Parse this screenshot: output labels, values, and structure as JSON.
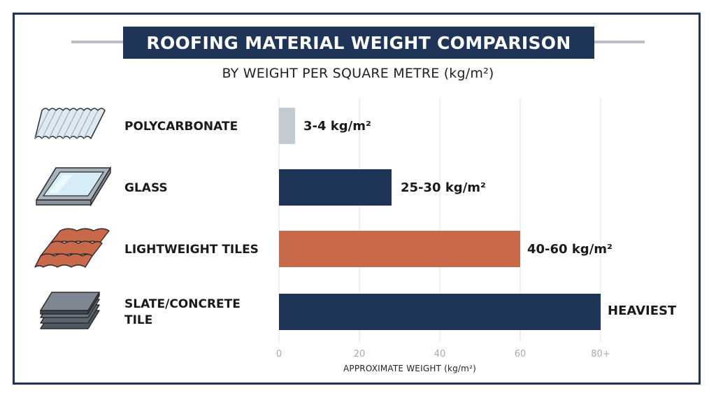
{
  "title": "ROOFING MATERIAL WEIGHT COMPARISON",
  "subtitle": "BY WEIGHT PER SQUARE METRE (kg/m²)",
  "icons": [
    "corrugated-sheet-icon",
    "glass-panel-icon",
    "roof-tiles-icon",
    "slate-stack-icon"
  ],
  "colors": {
    "navy": "#1f3557",
    "grey": "#c4cad1",
    "terracotta": "#c8694a",
    "grid": "#e2e2e2",
    "tick": "#a9a9a9"
  },
  "chart_data": {
    "type": "bar",
    "orientation": "horizontal",
    "title": "ROOFING MATERIAL WEIGHT COMPARISON",
    "subtitle": "BY WEIGHT PER SQUARE METRE (kg/m²)",
    "xlabel": "APPROXIMATE WEIGHT (kg/m²)",
    "categories": [
      "POLYCARBONATE",
      "GLASS",
      "LIGHTWEIGHT TILES",
      "SLATE/CONCRETE TILE"
    ],
    "values": [
      4,
      28,
      60,
      80
    ],
    "data_labels": [
      "3-4 kg/m²",
      "25-30 kg/m²",
      "40-60 kg/m²",
      "HEAVIEST"
    ],
    "bar_colors": [
      "#c4cad1",
      "#1f3557",
      "#c8694a",
      "#1f3557"
    ],
    "xlim": [
      0,
      80
    ],
    "xticks": [
      0,
      20,
      40,
      60,
      80
    ],
    "xtick_labels": [
      "0",
      "20",
      "40",
      "60",
      "80+"
    ],
    "grid": true,
    "legend": "none"
  }
}
